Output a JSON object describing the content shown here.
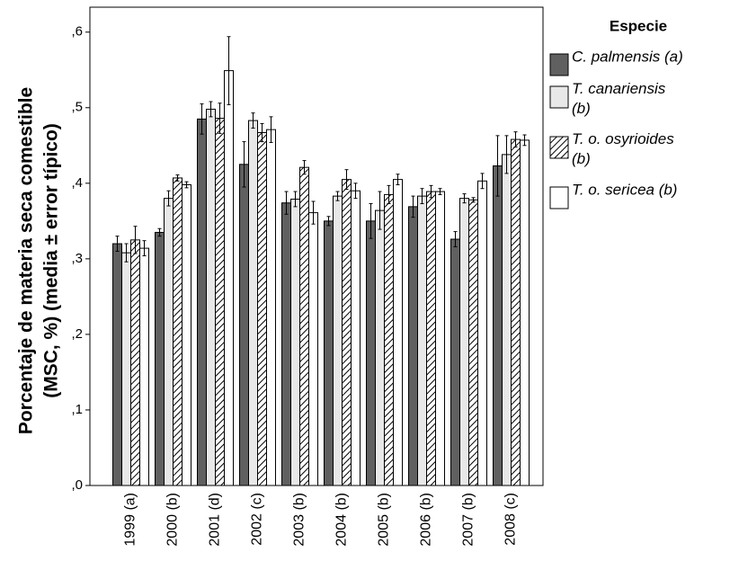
{
  "chart_data": {
    "type": "bar",
    "y_label": [
      "Porcentaje de materia seca comestible",
      "(MSC, %) (media ± error típico)"
    ],
    "legend_title": "Especie",
    "legend_position": "right",
    "categories": [
      "1999 (a)",
      "2000 (b)",
      "2001 (d)",
      "2002 (c)",
      "2003 (b)",
      "2004 (b)",
      "2005 (b)",
      "2006 (b)",
      "2007 (b)",
      "2008 (c)"
    ],
    "series": [
      {
        "name": "C. palmensis (a)",
        "color": "#606060",
        "values": [
          0.32,
          0.335,
          0.485,
          0.425,
          0.374,
          0.35,
          0.35,
          0.369,
          0.326,
          0.423
        ],
        "errors": [
          0.01,
          0.005,
          0.02,
          0.03,
          0.015,
          0.006,
          0.023,
          0.014,
          0.01,
          0.04
        ]
      },
      {
        "name": "T. canariensis (b)",
        "color": "#e8e8e8",
        "values": [
          0.308,
          0.38,
          0.498,
          0.483,
          0.379,
          0.383,
          0.364,
          0.383,
          0.38,
          0.438
        ],
        "errors": [
          0.012,
          0.01,
          0.01,
          0.01,
          0.01,
          0.006,
          0.025,
          0.01,
          0.006,
          0.025
        ]
      },
      {
        "name": "T. o. osyrioides (b)",
        "color": "#ffffff",
        "hatch": true,
        "values": [
          0.325,
          0.407,
          0.486,
          0.467,
          0.421,
          0.405,
          0.385,
          0.389,
          0.378,
          0.458
        ],
        "errors": [
          0.018,
          0.004,
          0.02,
          0.012,
          0.009,
          0.013,
          0.012,
          0.008,
          0.003,
          0.01
        ]
      },
      {
        "name": "T. o. sericea (b)",
        "color": "#ffffff",
        "values": [
          0.314,
          0.398,
          0.549,
          0.471,
          0.361,
          0.39,
          0.405,
          0.389,
          0.403,
          0.457
        ],
        "errors": [
          0.01,
          0.004,
          0.045,
          0.017,
          0.015,
          0.01,
          0.007,
          0.004,
          0.01,
          0.007
        ]
      }
    ],
    "ylim": [
      0,
      0.633
    ],
    "yticks": [
      {
        "value": 0,
        "label": ",0"
      },
      {
        "value": 0.1,
        "label": ",1"
      },
      {
        "value": 0.2,
        "label": ",2"
      },
      {
        "value": 0.3,
        "label": ",3"
      },
      {
        "value": 0.4,
        "label": ",4"
      },
      {
        "value": 0.5,
        "label": ",5"
      },
      {
        "value": 0.6,
        "label": ",6"
      }
    ]
  }
}
